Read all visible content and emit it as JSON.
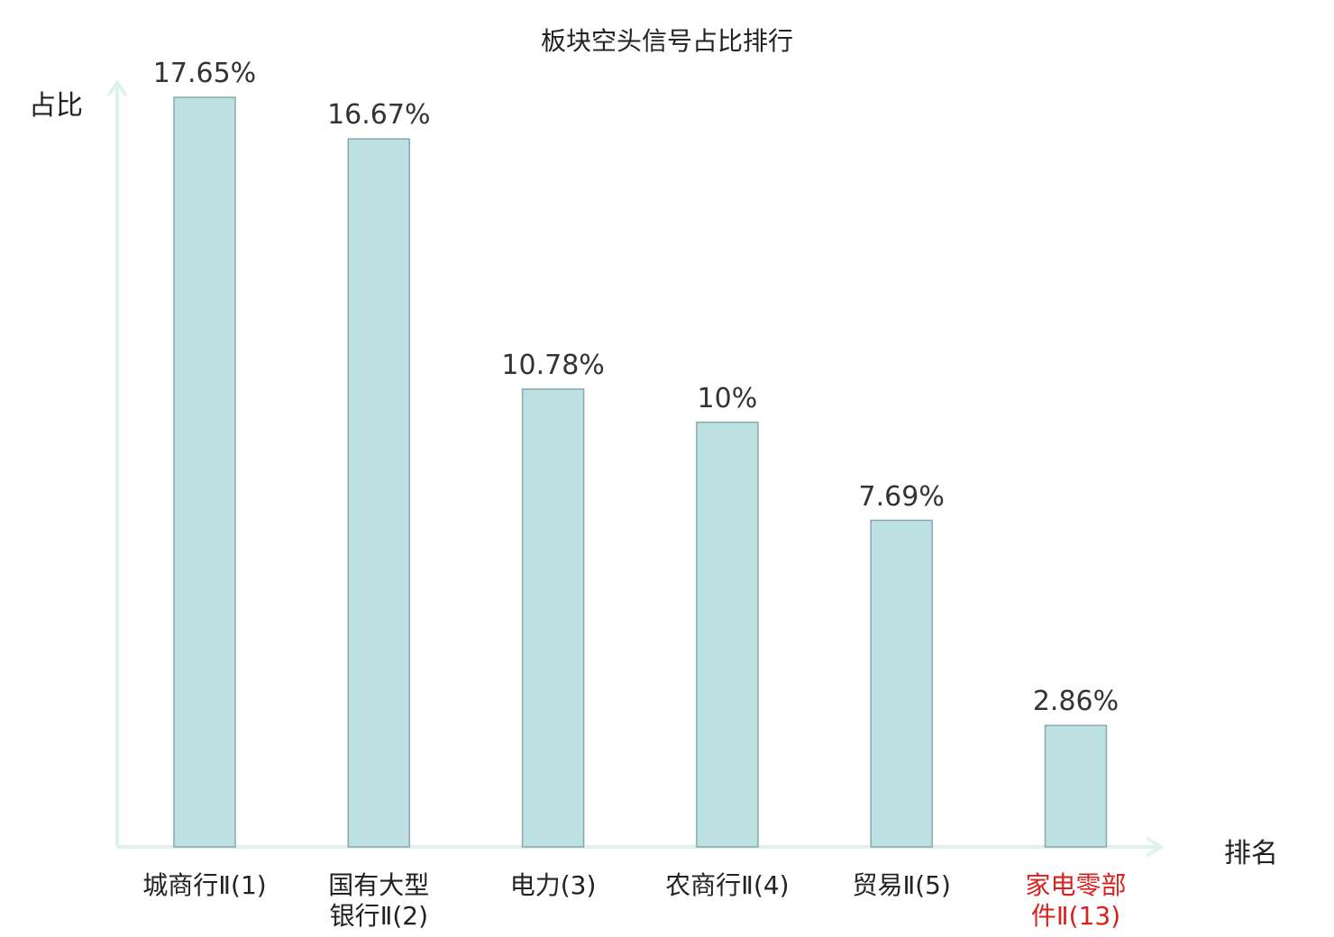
{
  "chart_data": {
    "type": "bar",
    "title": "板块空头信号占比排行",
    "ylabel": "占比",
    "xlabel": "排名",
    "ylim": [
      0,
      18
    ],
    "grid": false,
    "categories": [
      {
        "lines": [
          "城商行Ⅱ(1)"
        ],
        "highlight": false
      },
      {
        "lines": [
          "国有大型",
          "银行Ⅱ(2)"
        ],
        "highlight": false
      },
      {
        "lines": [
          "电力(3)"
        ],
        "highlight": false
      },
      {
        "lines": [
          "农商行Ⅱ(4)"
        ],
        "highlight": false
      },
      {
        "lines": [
          "贸易Ⅱ(5)"
        ],
        "highlight": false
      },
      {
        "lines": [
          "家电零部",
          "件Ⅱ(13)"
        ],
        "highlight": true
      }
    ],
    "values": [
      17.65,
      16.67,
      10.78,
      10,
      7.69,
      2.86
    ],
    "data_labels": [
      "17.65%",
      "16.67%",
      "10.78%",
      "10%",
      "7.69%",
      "2.86%"
    ]
  },
  "colors": {
    "bar_fill": "#bde0e3",
    "bar_stroke": "#8aa8ab",
    "axis": "#e0f2f0",
    "highlight_text": "#d9211e",
    "text": "#222222"
  }
}
